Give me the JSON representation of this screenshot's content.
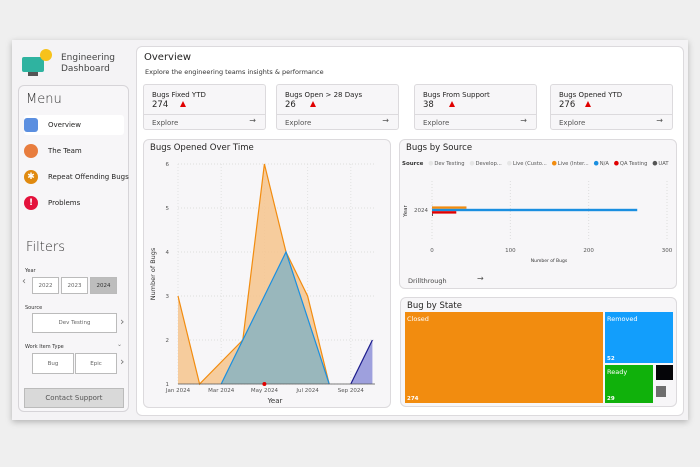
{
  "app": {
    "title_line1": "Engineering",
    "title_line2": "Dashboard"
  },
  "sidebar": {
    "menu_heading": "Menu",
    "items": [
      {
        "label": "Overview",
        "icon": "overview-icon",
        "active": true
      },
      {
        "label": "The Team",
        "icon": "team-icon"
      },
      {
        "label": "Repeat Offending Bugs",
        "icon": "bug-icon"
      },
      {
        "label": "Problems",
        "icon": "exclamation-icon"
      }
    ],
    "filters_heading": "Filters",
    "year": {
      "label": "Year",
      "options": [
        "2022",
        "2023",
        "2024"
      ],
      "selected": "2024"
    },
    "source": {
      "label": "Source",
      "value": "Dev Testing"
    },
    "work_item_type": {
      "label": "Work Item Type",
      "options": [
        "Bug",
        "Epic"
      ]
    },
    "contact_support": "Contact Support"
  },
  "header": {
    "title": "Overview",
    "subtitle": "Explore the engineering teams insights & performance"
  },
  "cards": [
    {
      "title": "Bugs Fixed YTD",
      "value": "274",
      "explore": "Explore"
    },
    {
      "title": "Bugs Open > 28 Days",
      "value": "26",
      "explore": "Explore"
    },
    {
      "title": "Bugs From Support",
      "value": "38",
      "explore": "Explore"
    },
    {
      "title": "Bugs Opened YTD",
      "value": "276",
      "explore": "Explore"
    }
  ],
  "chart_data": [
    {
      "type": "area",
      "title": "Bugs Opened Over Time",
      "xlabel": "Year",
      "ylabel": "Number of Bugs",
      "x_ticks": [
        "Jan 2024",
        "Mar 2024",
        "May 2024",
        "Jul 2024",
        "Sep 2024"
      ],
      "ylim": [
        1,
        6
      ],
      "y_ticks": [
        1,
        2,
        3,
        4,
        5,
        6
      ],
      "grid": true,
      "series": [
        {
          "color": "#f28c0f",
          "fill": "#f6c48d",
          "points": [
            [
              "Jan 2024",
              3
            ],
            [
              "Feb 2024",
              1
            ],
            [
              "Apr 2024",
              2
            ],
            [
              "May 2024",
              6
            ],
            [
              "Jun 2024",
              4
            ],
            [
              "Jul 2024",
              3
            ],
            [
              "Aug 2024",
              1
            ]
          ]
        },
        {
          "color": "#1a8fe0",
          "fill": "#8fb5c0",
          "points": [
            [
              "Mar 2024",
              1
            ],
            [
              "Jun 2024",
              4
            ],
            [
              "Aug 2024",
              1
            ]
          ]
        },
        {
          "color": "#1b1b8c",
          "fill": "#8e91d8",
          "points": [
            [
              "Sep 2024",
              1
            ],
            [
              "Oct 2024",
              2
            ]
          ]
        }
      ],
      "markers": [
        {
          "x": "May 2024",
          "y": 1,
          "color": "#e00000"
        }
      ]
    },
    {
      "type": "bar",
      "orientation": "horizontal",
      "title": "Bugs by Source",
      "legend_title": "Source",
      "legend": "top",
      "xlabel": "Number of Bugs",
      "ylabel": "Year",
      "categories": [
        "2024"
      ],
      "xlim": [
        0,
        300
      ],
      "x_ticks": [
        0,
        100,
        200,
        300
      ],
      "series": [
        {
          "name": "Dev Testing",
          "color": "#e6e6e6",
          "values": [
            1
          ]
        },
        {
          "name": "Develop...",
          "color": "#e6e6e6",
          "values": [
            0
          ]
        },
        {
          "name": "Live (Custo...",
          "color": "#e6e6e6",
          "values": [
            0
          ]
        },
        {
          "name": "Live (Inter...",
          "color": "#f28c0f",
          "values": [
            44
          ]
        },
        {
          "name": "N/A",
          "color": "#1a8fe0",
          "values": [
            262
          ]
        },
        {
          "name": "QA Testing",
          "color": "#e00000",
          "values": [
            31
          ]
        },
        {
          "name": "UAT",
          "color": "#555555",
          "values": [
            1
          ]
        }
      ],
      "drillthrough": "Drillthrough"
    },
    {
      "type": "treemap",
      "title": "Bug by State",
      "items": [
        {
          "label": "Closed",
          "value": 274,
          "color": "#f28c0f"
        },
        {
          "label": "Removed",
          "value": 52,
          "color": "#129efc"
        },
        {
          "label": "Ready",
          "value": 29,
          "color": "#10b10b"
        },
        {
          "label": "",
          "value": 10,
          "color": "#050508"
        },
        {
          "label": "",
          "value": 5,
          "color": "#6e6e6e"
        }
      ]
    }
  ]
}
